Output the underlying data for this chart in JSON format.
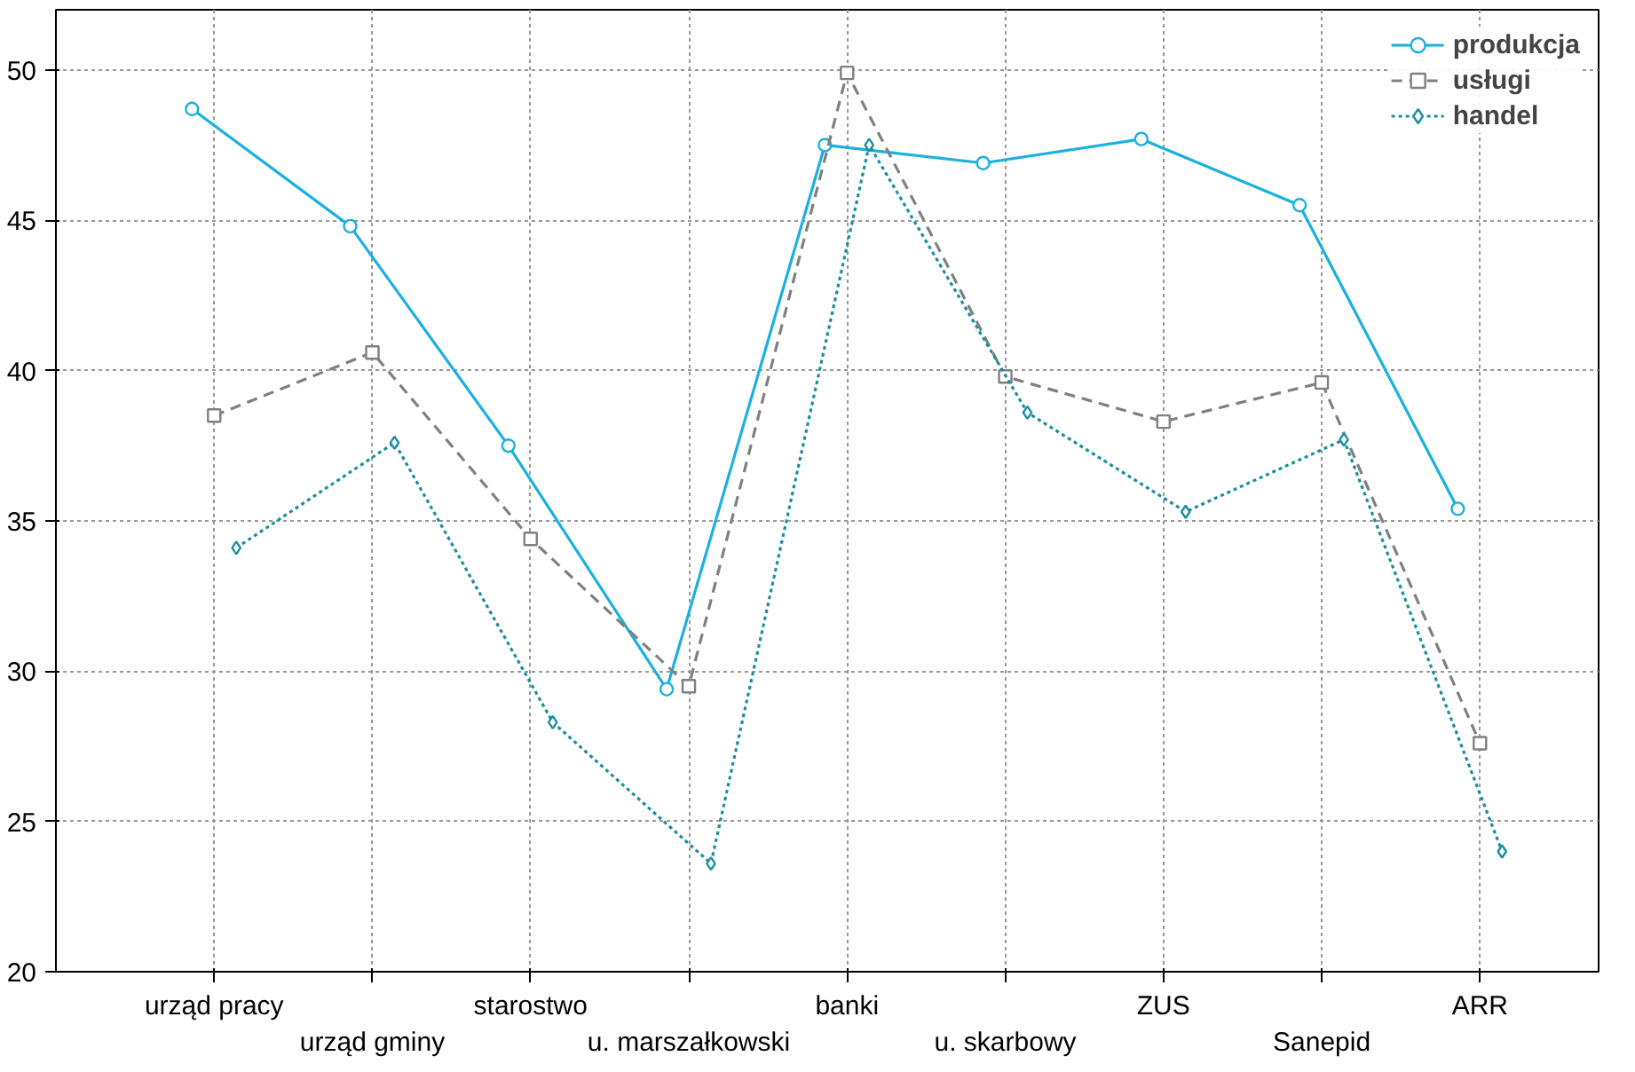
{
  "chart_data": {
    "type": "line",
    "categories": [
      "urząd pracy",
      "urząd gminy",
      "starostwo",
      "u. marszałkowski",
      "banki",
      "u. skarbowy",
      "ZUS",
      "Sanepid",
      "ARR"
    ],
    "series": [
      {
        "name": "produkcja",
        "color": "#1ab0e0",
        "marker": "circle",
        "line_style": "solid",
        "values": [
          48.7,
          44.8,
          37.5,
          29.4,
          47.5,
          46.9,
          47.7,
          45.5,
          35.4
        ]
      },
      {
        "name": "usługi",
        "color": "#808080",
        "marker": "square",
        "line_style": "dashed",
        "values": [
          38.5,
          40.6,
          34.4,
          29.5,
          49.9,
          39.8,
          38.3,
          39.6,
          27.6
        ]
      },
      {
        "name": "handel",
        "color": "#1a8fa0",
        "marker": "diamond",
        "line_style": "dotted",
        "values": [
          34.1,
          37.6,
          28.3,
          23.6,
          47.5,
          38.6,
          35.3,
          37.7,
          24.0
        ]
      }
    ],
    "ylim": [
      20,
      52
    ],
    "yticks": [
      20,
      25,
      30,
      35,
      40,
      45,
      50
    ],
    "grid": true,
    "legend": "top right"
  }
}
